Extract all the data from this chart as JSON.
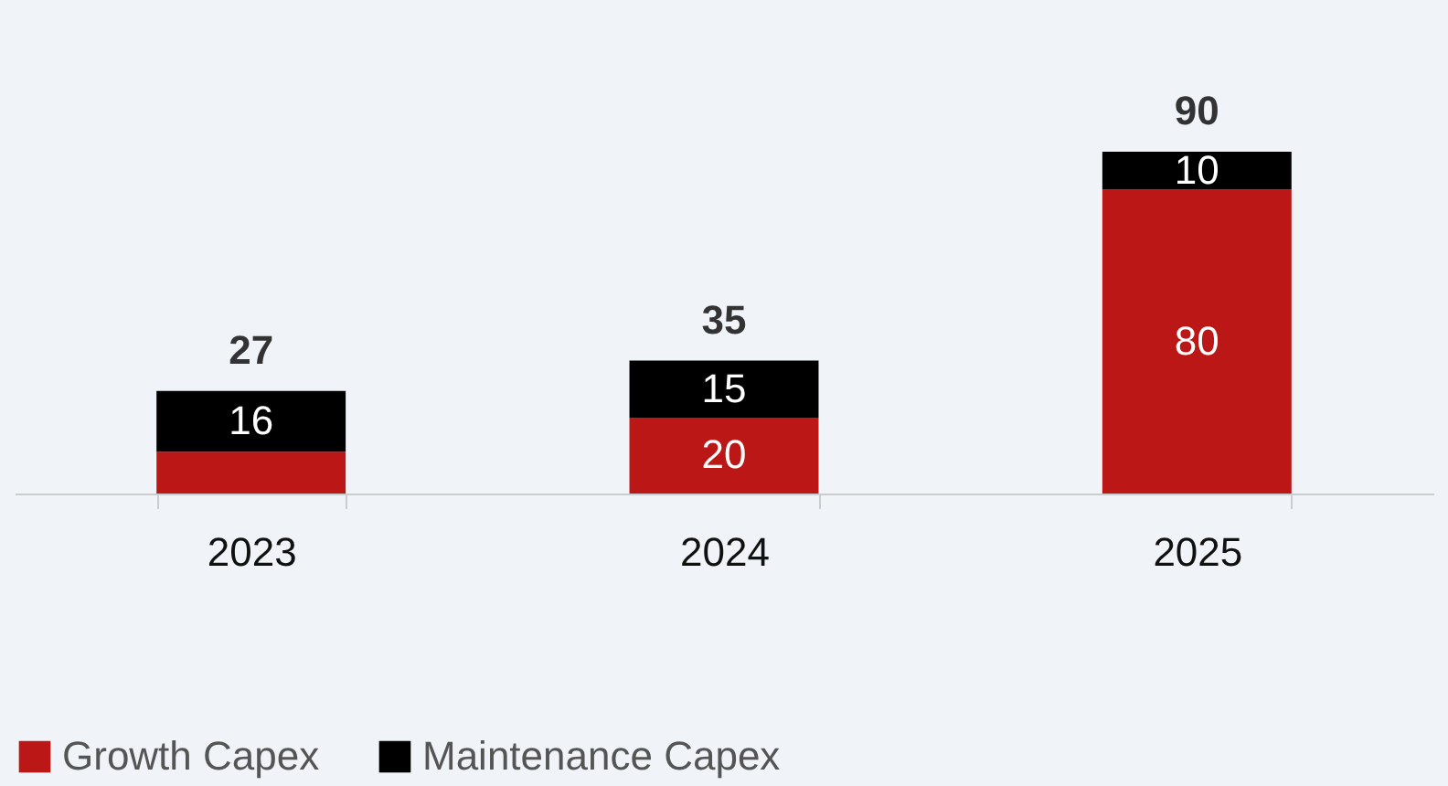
{
  "chart_data": {
    "type": "bar",
    "stacked": true,
    "categories": [
      "2023",
      "2024",
      "2025"
    ],
    "series": [
      {
        "name": "Growth Capex",
        "color": "#bb1717",
        "values": [
          11,
          20,
          80
        ],
        "value_labels": [
          null,
          "20",
          "80"
        ]
      },
      {
        "name": "Maintenance Capex",
        "color": "#000000",
        "values": [
          16,
          15,
          10
        ],
        "value_labels": [
          "16",
          "15",
          "10"
        ]
      }
    ],
    "totals": [
      "27",
      "35",
      "90"
    ],
    "legend": "bottom",
    "grid": false
  }
}
